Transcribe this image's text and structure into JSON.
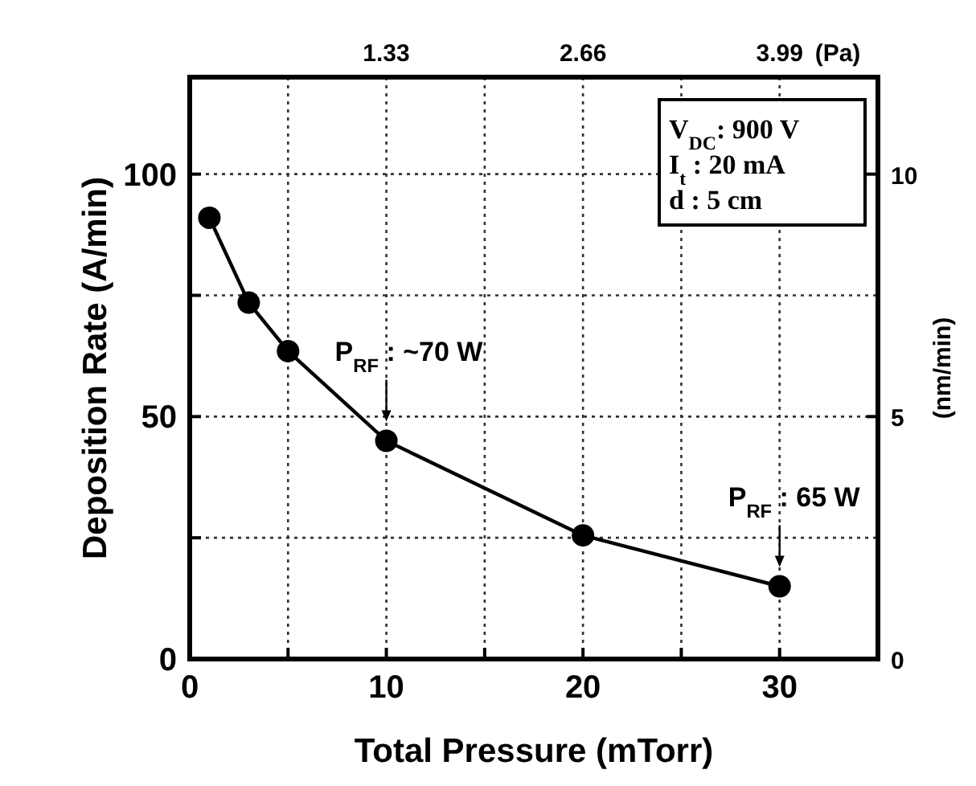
{
  "chart_data": {
    "type": "line",
    "xlabel": "Total Pressure (mTorr)",
    "ylabel": "Deposition Rate (A/min)",
    "y2label": "(nm/min)",
    "x2label": "(Pa)",
    "x": [
      1,
      3,
      5,
      10,
      20,
      30
    ],
    "series": [
      {
        "color": "#000000",
        "values": [
          91,
          73.5,
          63.5,
          45,
          25.5,
          15
        ]
      }
    ],
    "xlim": [
      0,
      35
    ],
    "xticks": [
      0,
      {
        "value": 5,
        "label": null
      },
      10,
      {
        "value": 15,
        "label": null
      },
      20,
      {
        "value": 25,
        "label": null
      },
      30
    ],
    "ylim": [
      0,
      120
    ],
    "yticks": [
      0,
      {
        "value": 25,
        "label": null
      },
      50,
      {
        "value": 75,
        "label": null
      },
      100
    ],
    "y2lim": [
      0,
      12
    ],
    "y2ticks": [
      0,
      5,
      10
    ],
    "x2lim": [
      0,
      4.655
    ],
    "x2ticks": [
      1.33,
      2.66,
      3.99
    ],
    "grid": true,
    "marker": "circle",
    "line_style": "solid",
    "annotations": [
      {
        "text": "P$_{RF}$ : ~70 W",
        "x": 10,
        "y": 45
      },
      {
        "text": "P$_{RF}$ : 65 W",
        "x": 30,
        "y": 15
      },
      "V$_{DC}$: 900 V",
      "I$_{t}$ : 20 mA",
      "d : 5 cm"
    ]
  }
}
